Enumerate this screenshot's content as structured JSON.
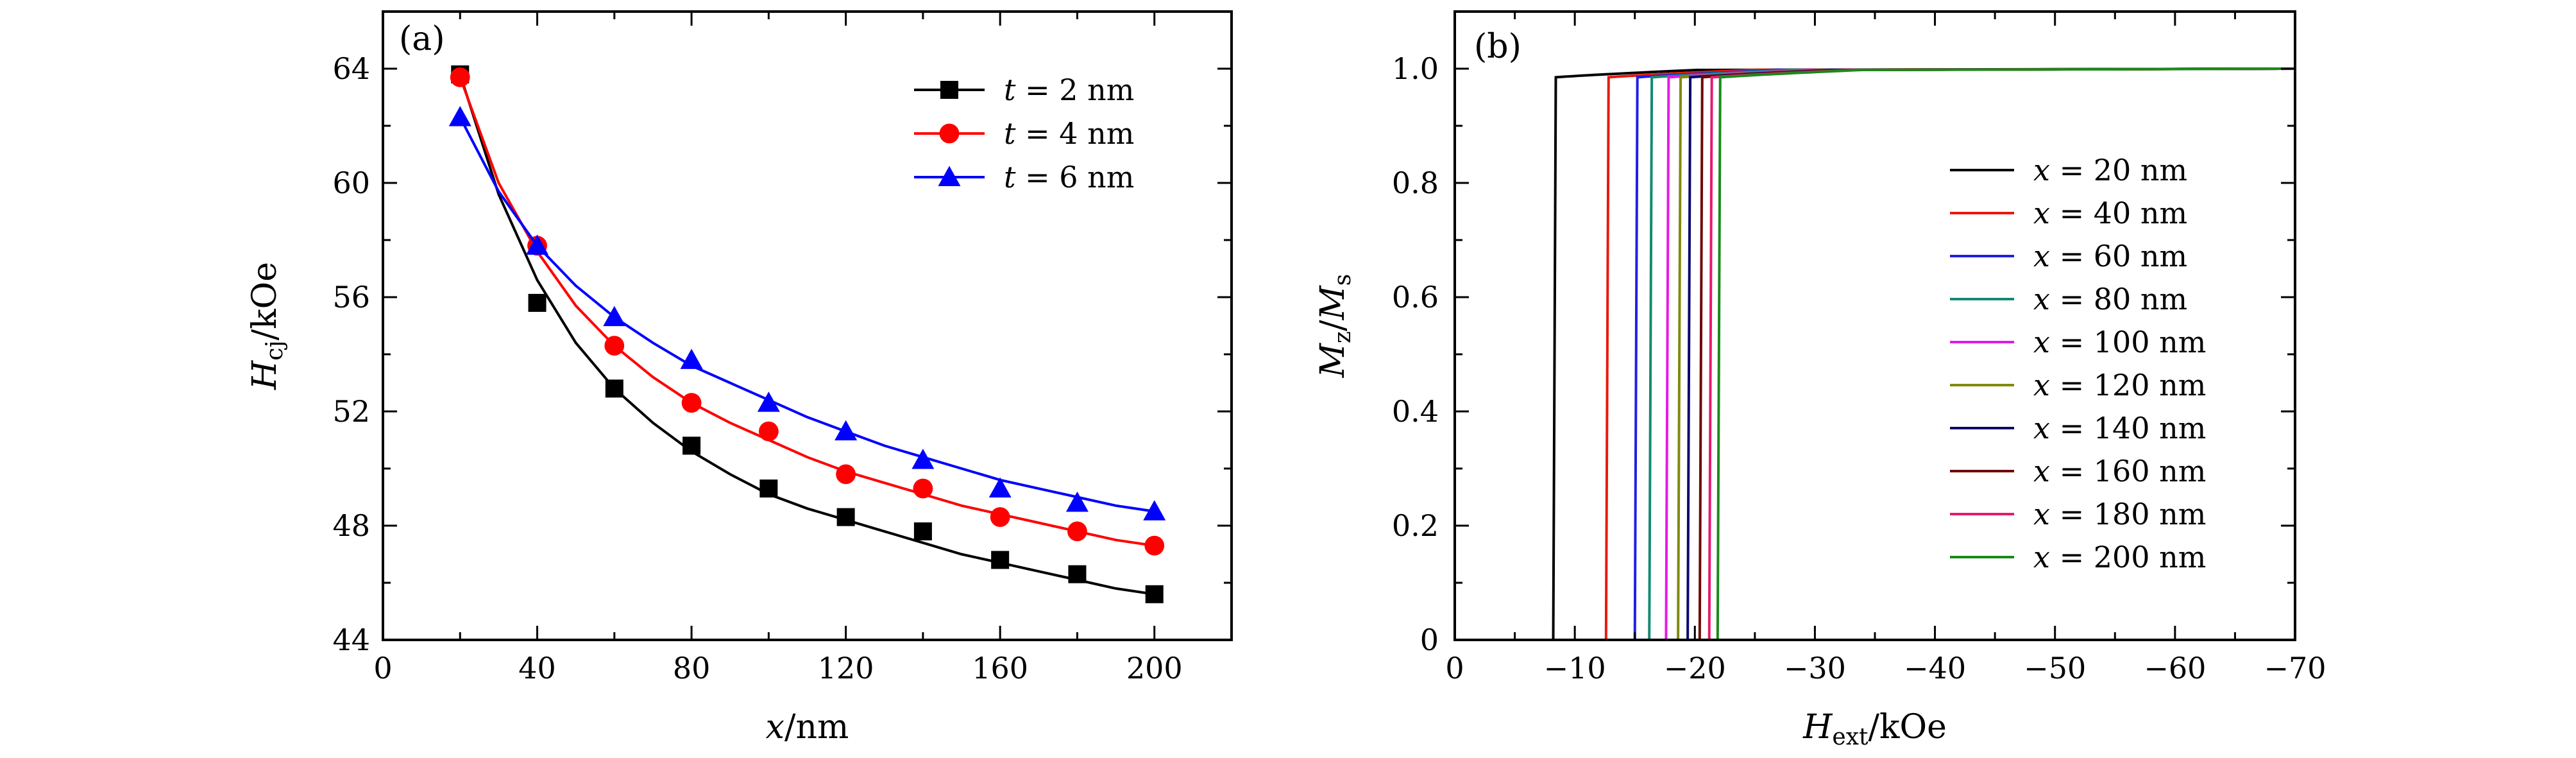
{
  "chart_data": [
    {
      "type": "scatter",
      "panel_label": "(a)",
      "xlabel": {
        "var": "x",
        "unit": "/nm"
      },
      "ylabel": {
        "var": "H",
        "sub": "cj",
        "unit": "/kOe"
      },
      "xlim": [
        0,
        220
      ],
      "ylim": [
        44,
        66
      ],
      "xticks": [
        "0",
        "40",
        "80",
        "120",
        "160",
        "200"
      ],
      "yticks": [
        "44",
        "48",
        "52",
        "56",
        "60",
        "64"
      ],
      "legend_position": "top-right",
      "series": [
        {
          "legend": {
            "var": "t",
            "eq": " = ",
            "val": "2 nm"
          },
          "color": "#000000",
          "marker": "square",
          "x": [
            20,
            40,
            60,
            80,
            100,
            120,
            140,
            160,
            180,
            200
          ],
          "y": [
            63.8,
            55.8,
            52.8,
            50.8,
            49.3,
            48.3,
            47.8,
            46.8,
            46.3,
            45.6
          ],
          "fit": [
            [
              20,
              63.8
            ],
            [
              30,
              59.6
            ],
            [
              40,
              56.6
            ],
            [
              50,
              54.4
            ],
            [
              60,
              52.8
            ],
            [
              70,
              51.6
            ],
            [
              80,
              50.6
            ],
            [
              90,
              49.8
            ],
            [
              100,
              49.1
            ],
            [
              110,
              48.6
            ],
            [
              120,
              48.2
            ],
            [
              130,
              47.8
            ],
            [
              140,
              47.4
            ],
            [
              150,
              47.0
            ],
            [
              160,
              46.7
            ],
            [
              170,
              46.4
            ],
            [
              180,
              46.1
            ],
            [
              190,
              45.8
            ],
            [
              200,
              45.6
            ]
          ]
        },
        {
          "legend": {
            "var": "t",
            "eq": " = ",
            "val": "4 nm"
          },
          "color": "#ff0000",
          "marker": "circle",
          "x": [
            20,
            40,
            60,
            80,
            100,
            120,
            140,
            160,
            180,
            200
          ],
          "y": [
            63.7,
            57.8,
            54.3,
            52.3,
            51.3,
            49.8,
            49.3,
            48.3,
            47.8,
            47.3
          ],
          "fit": [
            [
              20,
              63.7
            ],
            [
              30,
              60.0
            ],
            [
              40,
              57.6
            ],
            [
              50,
              55.7
            ],
            [
              60,
              54.3
            ],
            [
              70,
              53.2
            ],
            [
              80,
              52.3
            ],
            [
              90,
              51.6
            ],
            [
              100,
              51.0
            ],
            [
              110,
              50.4
            ],
            [
              120,
              49.9
            ],
            [
              130,
              49.5
            ],
            [
              140,
              49.1
            ],
            [
              150,
              48.7
            ],
            [
              160,
              48.4
            ],
            [
              170,
              48.1
            ],
            [
              180,
              47.8
            ],
            [
              190,
              47.5
            ],
            [
              200,
              47.3
            ]
          ]
        },
        {
          "legend": {
            "var": "t",
            "eq": " = ",
            "val": "6 nm"
          },
          "color": "#0000ff",
          "marker": "triangle",
          "x": [
            20,
            40,
            60,
            80,
            100,
            120,
            140,
            160,
            180,
            200
          ],
          "y": [
            62.3,
            57.8,
            55.3,
            53.8,
            52.3,
            51.3,
            50.3,
            49.3,
            48.8,
            48.5
          ],
          "fit": [
            [
              20,
              62.3
            ],
            [
              30,
              59.7
            ],
            [
              40,
              57.8
            ],
            [
              50,
              56.4
            ],
            [
              60,
              55.3
            ],
            [
              70,
              54.4
            ],
            [
              80,
              53.6
            ],
            [
              90,
              53.0
            ],
            [
              100,
              52.4
            ],
            [
              110,
              51.8
            ],
            [
              120,
              51.3
            ],
            [
              130,
              50.8
            ],
            [
              140,
              50.4
            ],
            [
              150,
              50.0
            ],
            [
              160,
              49.6
            ],
            [
              170,
              49.3
            ],
            [
              180,
              49.0
            ],
            [
              190,
              48.7
            ],
            [
              200,
              48.5
            ]
          ]
        }
      ]
    },
    {
      "type": "line",
      "panel_label": "(b)",
      "xlabel": {
        "var": "H",
        "sub": "ext",
        "unit": "/kOe"
      },
      "ylabel": {
        "num": "M",
        "num_sub": "z",
        "sep": "/",
        "den": "M",
        "den_sub": "s"
      },
      "xlim": [
        0,
        -70
      ],
      "ylim": [
        0,
        1.1
      ],
      "xticks": [
        "0",
        "−10",
        "−20",
        "−30",
        "−40",
        "−50",
        "−60",
        "−70"
      ],
      "yticks": [
        "0",
        "0.2",
        "0.4",
        "0.6",
        "0.8",
        "1.0"
      ],
      "legend_position": "right",
      "series": [
        {
          "legend": {
            "var": "x",
            "eq": " = ",
            "val": "20 nm"
          },
          "color": "#000000",
          "switch": -8.2
        },
        {
          "legend": {
            "var": "x",
            "eq": " = ",
            "val": "40 nm"
          },
          "color": "#e8190b",
          "switch": -12.6
        },
        {
          "legend": {
            "var": "x",
            "eq": " = ",
            "val": "60 nm"
          },
          "color": "#1f1fe6",
          "switch": -15.0
        },
        {
          "legend": {
            "var": "x",
            "eq": " = ",
            "val": "80 nm"
          },
          "color": "#138a72",
          "switch": -16.2
        },
        {
          "legend": {
            "var": "x",
            "eq": " = ",
            "val": "100 nm"
          },
          "color": "#e619e6",
          "switch": -17.6
        },
        {
          "legend": {
            "var": "x",
            "eq": " = ",
            "val": "120 nm"
          },
          "color": "#7f8a0c",
          "switch": -18.6
        },
        {
          "legend": {
            "var": "x",
            "eq": " = ",
            "val": "140 nm"
          },
          "color": "#08086e",
          "switch": -19.4
        },
        {
          "legend": {
            "var": "x",
            "eq": " = ",
            "val": "160 nm"
          },
          "color": "#6e0808",
          "switch": -20.4
        },
        {
          "legend": {
            "var": "x",
            "eq": " = ",
            "val": "180 nm"
          },
          "color": "#e6196e",
          "switch": -21.2
        },
        {
          "legend": {
            "var": "x",
            "eq": " = ",
            "val": "200 nm"
          },
          "color": "#198a19",
          "switch": -21.9
        }
      ]
    }
  ]
}
